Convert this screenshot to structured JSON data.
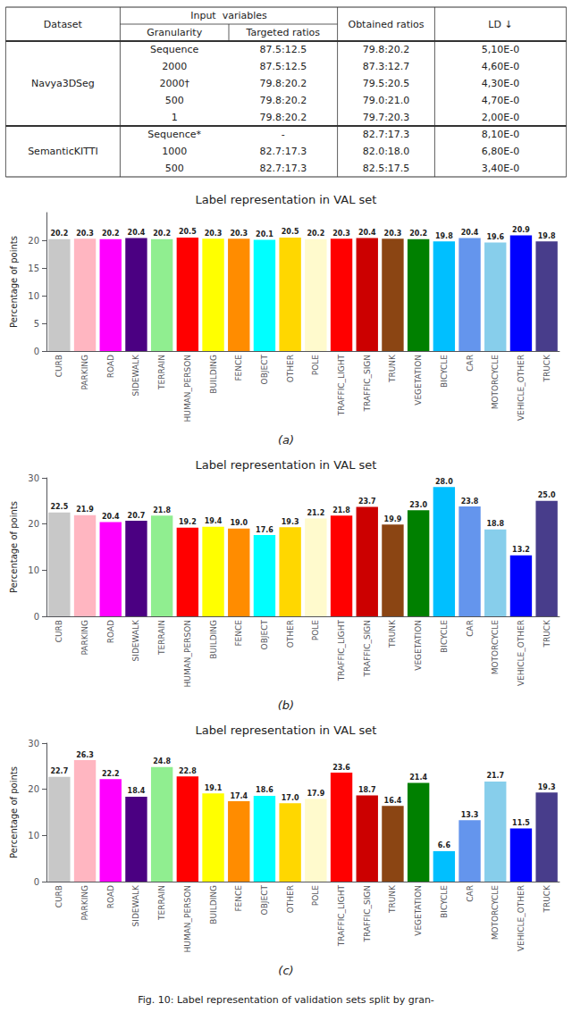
{
  "table": {
    "group_header": "Input  variables",
    "columns": [
      "Dataset",
      "Granularity",
      "Targeted ratios",
      "Obtained ratios",
      "LD ↓"
    ],
    "rows": [
      [
        "Navya3DSeg",
        "Sequence",
        "87.5:12.5",
        "79.8:20.2",
        "5,10E-0"
      ],
      [
        "Navya3DSeg",
        "2000",
        "87.5:12.5",
        "87.3:12.7",
        "4,60E-0"
      ],
      [
        "Navya3DSeg",
        "2000†",
        "79.8:20.2",
        "79.5:20.5",
        "4,30E-0"
      ],
      [
        "Navya3DSeg",
        "500",
        "79.8:20.2",
        "79.0:21.0",
        "4,70E-0"
      ],
      [
        "Navya3DSeg",
        "1",
        "79.8:20.2",
        "79.7:20.3",
        "2,00E-0"
      ],
      [
        "SemanticKITTI",
        "Sequence*",
        "-",
        "82.7:17.3",
        "8,10E-0"
      ],
      [
        "SemanticKITTI",
        "1000",
        "82.7:17.3",
        "82.0:18.0",
        "6,80E-0"
      ],
      [
        "SemanticKITTI",
        "500",
        "82.7:17.3",
        "82.5:17.5",
        "3,40E-0"
      ]
    ]
  },
  "chart_data": [
    {
      "type": "bar",
      "title": "Label representation in VAL set",
      "ylabel": "Percentage of points",
      "annotations": [
        "(a)"
      ],
      "categories": [
        "CURB",
        "PARKING",
        "ROAD",
        "SIDEWALK",
        "TERRAIN",
        "HUMAN_PERSON",
        "BUILDING",
        "FENCE",
        "OBJECT",
        "OTHER",
        "POLE",
        "TRAFFIC_LIGHT",
        "TRAFFIC_SIGN",
        "TRUNK",
        "VEGETATION",
        "BICYCLE",
        "CAR",
        "MOTORCYCLE",
        "VEHICLE_OTHER",
        "TRUCK"
      ],
      "values": [
        20.2,
        20.3,
        20.2,
        20.4,
        20.2,
        20.5,
        20.3,
        20.3,
        20.1,
        20.5,
        20.2,
        20.3,
        20.4,
        20.3,
        20.2,
        19.8,
        20.4,
        19.6,
        20.9,
        19.8
      ],
      "colors": [
        "#c8c8c8",
        "#ffb6c1",
        "#ff00ff",
        "#4b0082",
        "#90ee90",
        "#ff0000",
        "#ffff00",
        "#ff8c00",
        "#00ffff",
        "#ffd700",
        "#fffacd",
        "#ff0000",
        "#cc0000",
        "#8b4513",
        "#008000",
        "#00bfff",
        "#6495ed",
        "#87ceeb",
        "#0000ff",
        "#483d8b"
      ],
      "ylim": [
        0,
        25
      ],
      "yticks": [
        0,
        5,
        10,
        15,
        20
      ],
      "data_labels": true,
      "grid": false
    },
    {
      "type": "bar",
      "title": "Label representation in VAL set",
      "ylabel": "Percentage of points",
      "annotations": [
        "(b)"
      ],
      "categories": [
        "CURB",
        "PARKING",
        "ROAD",
        "SIDEWALK",
        "TERRAIN",
        "HUMAN_PERSON",
        "BUILDING",
        "FENCE",
        "OBJECT",
        "OTHER",
        "POLE",
        "TRAFFIC_LIGHT",
        "TRAFFIC_SIGN",
        "TRUNK",
        "VEGETATION",
        "BICYCLE",
        "CAR",
        "MOTORCYCLE",
        "VEHICLE_OTHER",
        "TRUCK"
      ],
      "values": [
        22.5,
        21.9,
        20.4,
        20.7,
        21.8,
        19.2,
        19.4,
        19.0,
        17.6,
        19.3,
        21.2,
        21.8,
        23.7,
        19.9,
        23.0,
        28.0,
        23.8,
        18.8,
        13.2,
        25.0
      ],
      "value_labels": [
        "22.5",
        "21.9",
        "20.4",
        "20.7",
        "21.8",
        "19.2",
        "19.4",
        "19.0",
        "17.6",
        "19.3",
        "21.2",
        "21.8",
        "23.7",
        "19.9",
        "23.0",
        "28.0",
        "23.8",
        "18.8",
        "13.2",
        "25.0"
      ],
      "colors": [
        "#c8c8c8",
        "#ffb6c1",
        "#ff00ff",
        "#4b0082",
        "#90ee90",
        "#ff0000",
        "#ffff00",
        "#ff8c00",
        "#00ffff",
        "#ffd700",
        "#fffacd",
        "#ff0000",
        "#cc0000",
        "#8b4513",
        "#008000",
        "#00bfff",
        "#6495ed",
        "#87ceeb",
        "#0000ff",
        "#483d8b"
      ],
      "ylim": [
        0,
        30
      ],
      "yticks": [
        0,
        10,
        20,
        30
      ],
      "data_labels": true,
      "grid": false
    },
    {
      "type": "bar",
      "title": "Label representation in VAL set",
      "ylabel": "Percentage of points",
      "annotations": [
        "(c)"
      ],
      "categories": [
        "CURB",
        "PARKING",
        "ROAD",
        "SIDEWALK",
        "TERRAIN",
        "HUMAN_PERSON",
        "BUILDING",
        "FENCE",
        "OBJECT",
        "OTHER",
        "POLE",
        "TRAFFIC_LIGHT",
        "TRAFFIC_SIGN",
        "TRUNK",
        "VEGETATION",
        "BICYCLE",
        "CAR",
        "MOTORCYCLE",
        "VEHICLE_OTHER",
        "TRUCK"
      ],
      "values": [
        22.7,
        26.3,
        22.2,
        18.4,
        24.8,
        22.8,
        19.1,
        17.4,
        18.6,
        17.0,
        17.9,
        23.6,
        18.7,
        16.4,
        21.4,
        6.6,
        13.3,
        21.7,
        11.5,
        19.3
      ],
      "value_labels": [
        "22.7",
        "26.3",
        "22.2",
        "18.4",
        "24.8",
        "22.8",
        "19.1",
        "17.4",
        "18.6",
        "17.0",
        "17.9",
        "23.6",
        "18.7",
        "16.4",
        "21.4",
        "6.6",
        "13.3",
        "21.7",
        "11.5",
        "19.3"
      ],
      "colors": [
        "#c8c8c8",
        "#ffb6c1",
        "#ff00ff",
        "#4b0082",
        "#90ee90",
        "#ff0000",
        "#ffff00",
        "#ff8c00",
        "#00ffff",
        "#ffd700",
        "#fffacd",
        "#ff0000",
        "#cc0000",
        "#8b4513",
        "#008000",
        "#00bfff",
        "#6495ed",
        "#87ceeb",
        "#0000ff",
        "#483d8b"
      ],
      "ylim": [
        0,
        30
      ],
      "yticks": [
        0,
        10,
        20,
        30
      ],
      "data_labels": true,
      "grid": false
    }
  ],
  "caption": "Fig. 10: Label representation of validation sets split by gran-"
}
